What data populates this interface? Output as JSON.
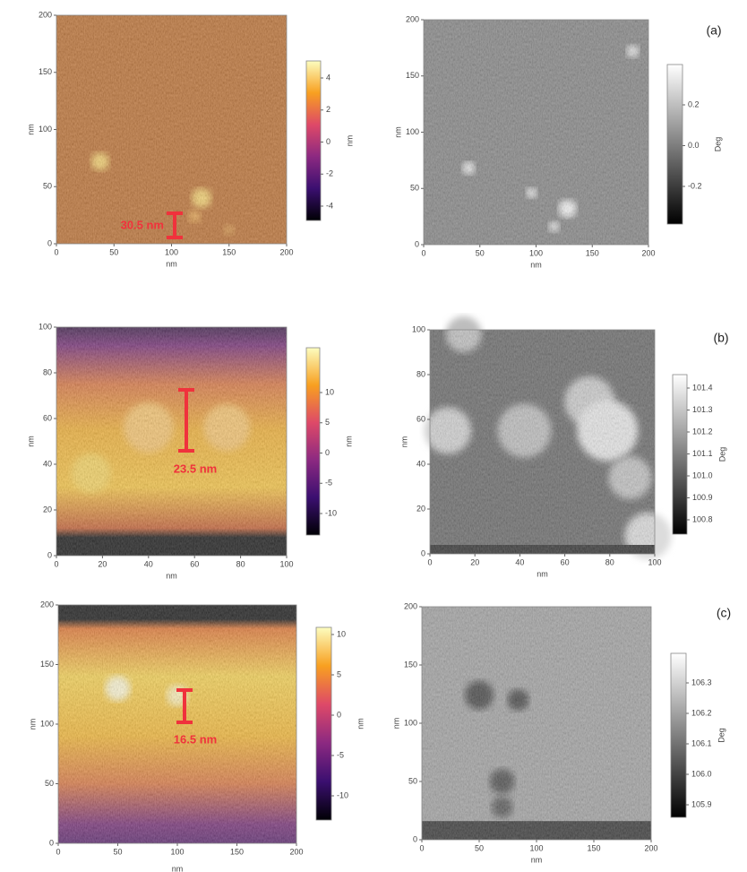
{
  "panels": [
    {
      "x_ticks": [
        "0",
        "50",
        "100",
        "150",
        "200"
      ],
      "y_ticks": [
        "0",
        "50",
        "100",
        "150",
        "200"
      ],
      "x_axis_label": "nm",
      "y_axis_label": "nm",
      "colorbar_ticks": [
        "4",
        "2",
        "0",
        "-2",
        "-4"
      ],
      "colorbar_label": "nm",
      "scale_label": "30.5 nm"
    },
    {
      "panel_label": "(a)",
      "x_ticks": [
        "0",
        "50",
        "100",
        "150",
        "200"
      ],
      "y_ticks": [
        "0",
        "50",
        "100",
        "150",
        "200"
      ],
      "x_axis_label": "nm",
      "y_axis_label": "nm",
      "colorbar_ticks": [
        "0.2",
        "0.0",
        "-0.2"
      ],
      "colorbar_label": "Deg"
    },
    {
      "x_ticks": [
        "0",
        "20",
        "40",
        "60",
        "80",
        "100"
      ],
      "y_ticks": [
        "0",
        "20",
        "40",
        "60",
        "80",
        "100"
      ],
      "x_axis_label": "nm",
      "y_axis_label": "nm",
      "colorbar_ticks": [
        "10",
        "5",
        "0",
        "-5",
        "-10"
      ],
      "colorbar_label": "nm",
      "scale_label": "23.5 nm"
    },
    {
      "panel_label": "(b)",
      "x_ticks": [
        "0",
        "20",
        "40",
        "60",
        "80",
        "100"
      ],
      "y_ticks": [
        "0",
        "20",
        "40",
        "60",
        "80",
        "100"
      ],
      "x_axis_label": "nm",
      "y_axis_label": "nm",
      "colorbar_ticks": [
        "101.4",
        "101.3",
        "101.2",
        "101.1",
        "101.0",
        "100.9",
        "100.8"
      ],
      "colorbar_label": "Deg"
    },
    {
      "x_ticks": [
        "0",
        "50",
        "100",
        "150",
        "200"
      ],
      "y_ticks": [
        "0",
        "50",
        "100",
        "150",
        "200"
      ],
      "x_axis_label": "nm",
      "y_axis_label": "nm",
      "colorbar_ticks": [
        "10",
        "5",
        "0",
        "-5",
        "-10"
      ],
      "colorbar_label": "nm",
      "scale_label": "16.5 nm"
    },
    {
      "panel_label": "(c)",
      "x_ticks": [
        "0",
        "50",
        "100",
        "150",
        "200"
      ],
      "y_ticks": [
        "0",
        "50",
        "100",
        "150",
        "200"
      ],
      "x_axis_label": "nm",
      "y_axis_label": "nm",
      "colorbar_ticks": [
        "106.3",
        "106.2",
        "106.1",
        "106.0",
        "105.9"
      ],
      "colorbar_label": "Deg"
    }
  ]
}
